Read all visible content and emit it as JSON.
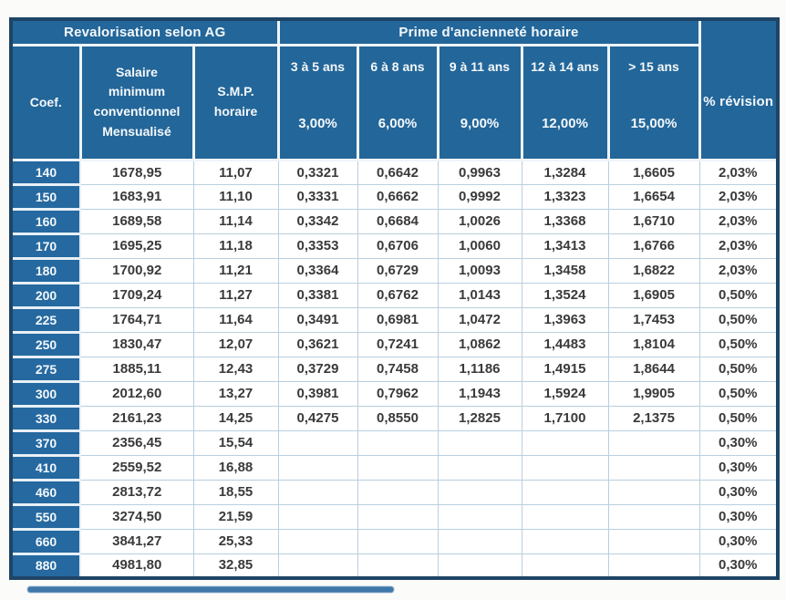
{
  "colors": {
    "cell_blue": "#236699",
    "coef_blue": "#2569a0",
    "outer_border": "#1e4466",
    "grid_line": "#b9cfdf",
    "header_text": "#f4f8fb",
    "data_text": "#3a3a3a"
  },
  "table": {
    "group_headers": {
      "revalorisation": "Revalorisation selon AG",
      "prime": "Prime d'ancienneté horaire",
      "revision": "% révision"
    },
    "columns": {
      "coef": "Coef.",
      "salaire": "Salaire\nminimum\nconventionnel\nMensualisé",
      "smp": "S.M.P.\nhoraire"
    },
    "prime_columns": [
      {
        "label": "3 à 5 ans",
        "rate": "3,00%"
      },
      {
        "label": "6 à 8 ans",
        "rate": "6,00%"
      },
      {
        "label": "9 à 11 ans",
        "rate": "9,00%"
      },
      {
        "label": "12 à 14 ans",
        "rate": "12,00%"
      },
      {
        "label": "> 15 ans",
        "rate": "15,00%"
      }
    ],
    "rows": [
      {
        "coef": "140",
        "salaire": "1678,95",
        "smp": "11,07",
        "primes": [
          "0,3321",
          "0,6642",
          "0,9963",
          "1,3284",
          "1,6605"
        ],
        "revision": "2,03%"
      },
      {
        "coef": "150",
        "salaire": "1683,91",
        "smp": "11,10",
        "primes": [
          "0,3331",
          "0,6662",
          "0,9992",
          "1,3323",
          "1,6654"
        ],
        "revision": "2,03%"
      },
      {
        "coef": "160",
        "salaire": "1689,58",
        "smp": "11,14",
        "primes": [
          "0,3342",
          "0,6684",
          "1,0026",
          "1,3368",
          "1,6710"
        ],
        "revision": "2,03%"
      },
      {
        "coef": "170",
        "salaire": "1695,25",
        "smp": "11,18",
        "primes": [
          "0,3353",
          "0,6706",
          "1,0060",
          "1,3413",
          "1,6766"
        ],
        "revision": "2,03%"
      },
      {
        "coef": "180",
        "salaire": "1700,92",
        "smp": "11,21",
        "primes": [
          "0,3364",
          "0,6729",
          "1,0093",
          "1,3458",
          "1,6822"
        ],
        "revision": "2,03%"
      },
      {
        "coef": "200",
        "salaire": "1709,24",
        "smp": "11,27",
        "primes": [
          "0,3381",
          "0,6762",
          "1,0143",
          "1,3524",
          "1,6905"
        ],
        "revision": "0,50%"
      },
      {
        "coef": "225",
        "salaire": "1764,71",
        "smp": "11,64",
        "primes": [
          "0,3491",
          "0,6981",
          "1,0472",
          "1,3963",
          "1,7453"
        ],
        "revision": "0,50%"
      },
      {
        "coef": "250",
        "salaire": "1830,47",
        "smp": "12,07",
        "primes": [
          "0,3621",
          "0,7241",
          "1,0862",
          "1,4483",
          "1,8104"
        ],
        "revision": "0,50%"
      },
      {
        "coef": "275",
        "salaire": "1885,11",
        "smp": "12,43",
        "primes": [
          "0,3729",
          "0,7458",
          "1,1186",
          "1,4915",
          "1,8644"
        ],
        "revision": "0,50%"
      },
      {
        "coef": "300",
        "salaire": "2012,60",
        "smp": "13,27",
        "primes": [
          "0,3981",
          "0,7962",
          "1,1943",
          "1,5924",
          "1,9905"
        ],
        "revision": "0,50%"
      },
      {
        "coef": "330",
        "salaire": "2161,23",
        "smp": "14,25",
        "primes": [
          "0,4275",
          "0,8550",
          "1,2825",
          "1,7100",
          "2,1375"
        ],
        "revision": "0,50%"
      },
      {
        "coef": "370",
        "salaire": "2356,45",
        "smp": "15,54",
        "primes": [
          "",
          "",
          "",
          "",
          ""
        ],
        "revision": "0,30%"
      },
      {
        "coef": "410",
        "salaire": "2559,52",
        "smp": "16,88",
        "primes": [
          "",
          "",
          "",
          "",
          ""
        ],
        "revision": "0,30%"
      },
      {
        "coef": "460",
        "salaire": "2813,72",
        "smp": "18,55",
        "primes": [
          "",
          "",
          "",
          "",
          ""
        ],
        "revision": "0,30%"
      },
      {
        "coef": "550",
        "salaire": "3274,50",
        "smp": "21,59",
        "primes": [
          "",
          "",
          "",
          "",
          ""
        ],
        "revision": "0,30%"
      },
      {
        "coef": "660",
        "salaire": "3841,27",
        "smp": "25,33",
        "primes": [
          "",
          "",
          "",
          "",
          ""
        ],
        "revision": "0,30%"
      },
      {
        "coef": "880",
        "salaire": "4981,80",
        "smp": "32,85",
        "primes": [
          "",
          "",
          "",
          "",
          ""
        ],
        "revision": "0,30%"
      }
    ]
  }
}
